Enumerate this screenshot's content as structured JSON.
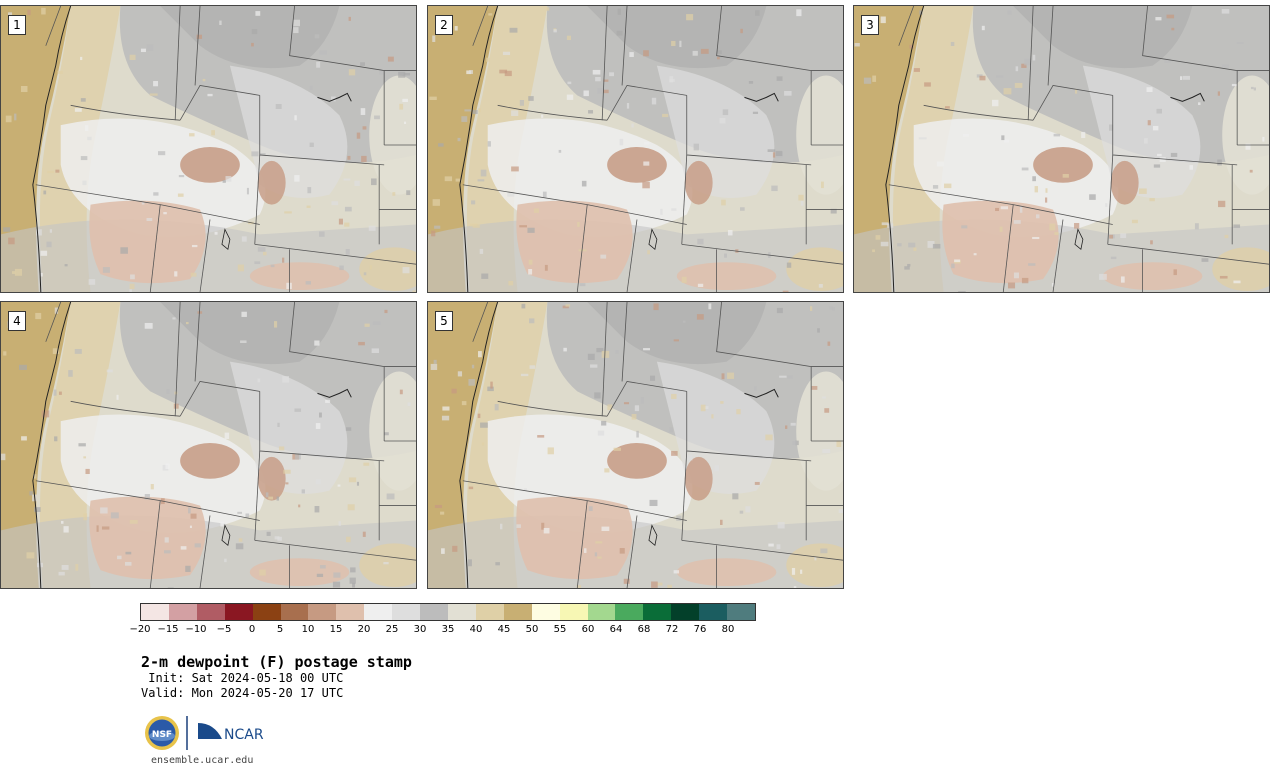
{
  "panels": [
    {
      "label": "1"
    },
    {
      "label": "2"
    },
    {
      "label": "3"
    },
    {
      "label": "4"
    },
    {
      "label": "5"
    }
  ],
  "colorbar": {
    "colors": [
      "#f4e6e4",
      "#d3a0a3",
      "#b05c64",
      "#8a1722",
      "#8b4113",
      "#a86f4e",
      "#c69a82",
      "#dfc0ad",
      "#efefef",
      "#dedede",
      "#bcbcbc",
      "#e2e0d4",
      "#dfd0a7",
      "#c8af73",
      "#fefde2",
      "#f7f7b4",
      "#a3d88f",
      "#4aaa5e",
      "#0a6d38",
      "#03402a",
      "#1b5d60",
      "#4f7c7e"
    ],
    "tick_labels": [
      "−20",
      "−15",
      "−10",
      "−5",
      "0",
      "5",
      "10",
      "15",
      "20",
      "25",
      "30",
      "35",
      "40",
      "45",
      "50",
      "55",
      "60",
      "64",
      "68",
      "72",
      "76",
      "80"
    ]
  },
  "title": "2-m dewpoint (F) postage stamp",
  "init": " Init: Sat 2024-05-18 00 UTC",
  "valid": "Valid: Mon 2024-05-20 17 UTC",
  "logos": {
    "nsf": "NSF",
    "ncar": "NCAR"
  },
  "site": "ensemble.ucar.edu"
}
